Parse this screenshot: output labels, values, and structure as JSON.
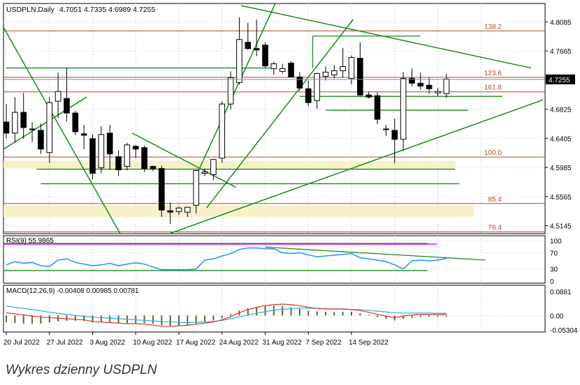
{
  "chart_data": {
    "type": "candlestick",
    "symbol_header": "USDPLN,Daily",
    "ohlc_header": "4.7051 4.7335 4.6989 4.7255",
    "last_price_label": "4.7255",
    "price_axis_ticks": [
      "4.8085",
      "4.7665",
      "4.7255",
      "4.6825",
      "4.6405",
      "4.5985",
      "4.5565",
      "4.5145"
    ],
    "price_range": [
      4.503,
      4.835
    ],
    "date_labels": [
      "20 Jul 2022",
      "27 Jul 2022",
      "3 Aug 2022",
      "10 Aug 2022",
      "17 Aug 2022",
      "24 Aug 2022",
      "31 Aug 2022",
      "7 Sep 2022",
      "14 Sep 2022"
    ],
    "candles": [
      {
        "o": 4.664,
        "h": 4.69,
        "l": 4.64,
        "c": 4.648
      },
      {
        "o": 4.648,
        "h": 4.7,
        "l": 4.635,
        "c": 4.678
      },
      {
        "o": 4.678,
        "h": 4.706,
        "l": 4.64,
        "c": 4.656
      },
      {
        "o": 4.654,
        "h": 4.664,
        "l": 4.635,
        "c": 4.654
      },
      {
        "o": 4.652,
        "h": 4.662,
        "l": 4.618,
        "c": 4.625
      },
      {
        "o": 4.62,
        "h": 4.7,
        "l": 4.605,
        "c": 4.692
      },
      {
        "o": 4.694,
        "h": 4.735,
        "l": 4.67,
        "c": 4.708
      },
      {
        "o": 4.698,
        "h": 4.742,
        "l": 4.665,
        "c": 4.677
      },
      {
        "o": 4.677,
        "h": 4.68,
        "l": 4.645,
        "c": 4.65
      },
      {
        "o": 4.647,
        "h": 4.66,
        "l": 4.625,
        "c": 4.645
      },
      {
        "o": 4.64,
        "h": 4.646,
        "l": 4.582,
        "c": 4.59
      },
      {
        "o": 4.598,
        "h": 4.658,
        "l": 4.59,
        "c": 4.646
      },
      {
        "o": 4.648,
        "h": 4.66,
        "l": 4.595,
        "c": 4.618
      },
      {
        "o": 4.614,
        "h": 4.623,
        "l": 4.586,
        "c": 4.595
      },
      {
        "o": 4.6,
        "h": 4.634,
        "l": 4.594,
        "c": 4.631
      },
      {
        "o": 4.629,
        "h": 4.631,
        "l": 4.612,
        "c": 4.625
      },
      {
        "o": 4.627,
        "h": 4.63,
        "l": 4.592,
        "c": 4.597
      },
      {
        "o": 4.6,
        "h": 4.601,
        "l": 4.593,
        "c": 4.597
      },
      {
        "o": 4.597,
        "h": 4.601,
        "l": 4.527,
        "c": 4.537
      },
      {
        "o": 4.536,
        "h": 4.548,
        "l": 4.517,
        "c": 4.534
      },
      {
        "o": 4.535,
        "h": 4.542,
        "l": 4.53,
        "c": 4.54
      },
      {
        "o": 4.534,
        "h": 4.541,
        "l": 4.527,
        "c": 4.541
      },
      {
        "o": 4.544,
        "h": 4.594,
        "l": 4.532,
        "c": 4.594
      },
      {
        "o": 4.59,
        "h": 4.597,
        "l": 4.586,
        "c": 4.592
      },
      {
        "o": 4.588,
        "h": 4.61,
        "l": 4.58,
        "c": 4.61
      },
      {
        "o": 4.612,
        "h": 4.694,
        "l": 4.605,
        "c": 4.69
      },
      {
        "o": 4.69,
        "h": 4.737,
        "l": 4.682,
        "c": 4.728
      },
      {
        "o": 4.721,
        "h": 4.815,
        "l": 4.718,
        "c": 4.783
      },
      {
        "o": 4.779,
        "h": 4.807,
        "l": 4.768,
        "c": 4.77
      },
      {
        "o": 4.77,
        "h": 4.812,
        "l": 4.759,
        "c": 4.768
      },
      {
        "o": 4.775,
        "h": 4.779,
        "l": 4.742,
        "c": 4.745
      },
      {
        "o": 4.741,
        "h": 4.751,
        "l": 4.732,
        "c": 4.748
      },
      {
        "o": 4.737,
        "h": 4.748,
        "l": 4.734,
        "c": 4.741
      },
      {
        "o": 4.749,
        "h": 4.752,
        "l": 4.729,
        "c": 4.729
      },
      {
        "o": 4.729,
        "h": 4.736,
        "l": 4.709,
        "c": 4.713
      },
      {
        "o": 4.712,
        "h": 4.724,
        "l": 4.687,
        "c": 4.692
      },
      {
        "o": 4.695,
        "h": 4.735,
        "l": 4.683,
        "c": 4.734
      },
      {
        "o": 4.73,
        "h": 4.744,
        "l": 4.724,
        "c": 4.736
      },
      {
        "o": 4.732,
        "h": 4.746,
        "l": 4.727,
        "c": 4.738
      },
      {
        "o": 4.738,
        "h": 4.771,
        "l": 4.728,
        "c": 4.744
      },
      {
        "o": 4.727,
        "h": 4.76,
        "l": 4.718,
        "c": 4.757
      },
      {
        "o": 4.756,
        "h": 4.779,
        "l": 4.7,
        "c": 4.703
      },
      {
        "o": 4.703,
        "h": 4.708,
        "l": 4.698,
        "c": 4.7
      },
      {
        "o": 4.702,
        "h": 4.707,
        "l": 4.661,
        "c": 4.668
      },
      {
        "o": 4.654,
        "h": 4.66,
        "l": 4.644,
        "c": 4.654
      },
      {
        "o": 4.652,
        "h": 4.669,
        "l": 4.605,
        "c": 4.639
      },
      {
        "o": 4.639,
        "h": 4.736,
        "l": 4.622,
        "c": 4.727
      },
      {
        "o": 4.727,
        "h": 4.741,
        "l": 4.716,
        "c": 4.72
      },
      {
        "o": 4.72,
        "h": 4.735,
        "l": 4.711,
        "c": 4.716
      },
      {
        "o": 4.717,
        "h": 4.728,
        "l": 4.705,
        "c": 4.712
      },
      {
        "o": 4.706,
        "h": 4.713,
        "l": 4.701,
        "c": 4.708
      },
      {
        "o": 4.705,
        "h": 4.734,
        "l": 4.699,
        "c": 4.726
      }
    ],
    "fibonacci_levels": [
      {
        "label": "138.2",
        "price": 4.7955
      },
      {
        "label": "123.6",
        "price": 4.7285
      },
      {
        "label": "161.8",
        "price": 4.7075
      },
      {
        "label": "100.0",
        "price": 4.6135
      },
      {
        "label": "85.4",
        "price": 4.5465
      },
      {
        "label": "76.4",
        "price": 4.5055
      }
    ],
    "support_zones": [
      {
        "from": 4.597,
        "to": 4.608
      },
      {
        "from": 4.527,
        "to": 4.544
      }
    ],
    "rsi": {
      "label": "RSI(9) 55.9865",
      "levels": [
        "100",
        "70",
        "30",
        "0"
      ],
      "values": [
        40,
        48,
        44,
        46,
        38,
        36,
        52,
        55,
        46,
        42,
        38,
        40,
        44,
        38,
        42,
        45,
        42,
        35,
        28,
        28,
        28,
        28,
        30,
        52,
        55,
        62,
        68,
        78,
        82,
        82,
        80,
        80,
        70,
        68,
        70,
        65,
        60,
        62,
        64,
        66,
        68,
        58,
        55,
        52,
        48,
        40,
        30,
        50,
        52,
        50,
        52,
        55.99
      ]
    },
    "macd": {
      "label": "MACD(12,26,9) -0.00408 0.00985 0.00781",
      "levels": [
        "0.0881",
        "0.00",
        "-0.05304"
      ],
      "range": [
        -0.053,
        0.0881
      ],
      "histogram": [
        -0.024,
        -0.028,
        -0.03,
        -0.03,
        -0.03,
        -0.026,
        -0.022,
        -0.02,
        -0.02,
        -0.02,
        -0.025,
        -0.025,
        -0.025,
        -0.027,
        -0.028,
        -0.028,
        -0.028,
        -0.03,
        -0.036,
        -0.038,
        -0.036,
        -0.035,
        -0.03,
        -0.022,
        -0.018,
        -0.01,
        0.005,
        0.018,
        0.026,
        0.03,
        0.034,
        0.036,
        0.034,
        0.03,
        0.025,
        0.018,
        0.015,
        0.014,
        0.013,
        0.014,
        0.014,
        0.008,
        0.003,
        -0.006,
        -0.012,
        -0.018,
        -0.012,
        -0.008,
        -0.006,
        -0.005,
        -0.005,
        -0.004
      ],
      "signal": [
        0.035,
        0.03,
        0.026,
        0.022,
        0.017,
        0.012,
        0.008,
        0.004,
        0.0,
        -0.003,
        -0.006,
        -0.008,
        -0.01,
        -0.012,
        -0.014,
        -0.016,
        -0.018,
        -0.02,
        -0.022,
        -0.024,
        -0.025,
        -0.026,
        -0.025,
        -0.024,
        -0.022,
        -0.018,
        -0.012,
        -0.005,
        0.002,
        0.008,
        0.014,
        0.019,
        0.023,
        0.026,
        0.027,
        0.027,
        0.026,
        0.025,
        0.024,
        0.023,
        0.022,
        0.021,
        0.019,
        0.016,
        0.013,
        0.01,
        0.009,
        0.009,
        0.009,
        0.009,
        0.008,
        0.008
      ],
      "macd_line": [
        0.01,
        0.006,
        0.002,
        -0.002,
        -0.006,
        -0.008,
        -0.01,
        -0.012,
        -0.014,
        -0.016,
        -0.022,
        -0.024,
        -0.026,
        -0.028,
        -0.03,
        -0.03,
        -0.032,
        -0.035,
        -0.04,
        -0.04,
        -0.038,
        -0.036,
        -0.032,
        -0.028,
        -0.024,
        -0.016,
        -0.004,
        0.01,
        0.022,
        0.03,
        0.036,
        0.04,
        0.042,
        0.04,
        0.036,
        0.03,
        0.026,
        0.024,
        0.024,
        0.024,
        0.022,
        0.018,
        0.012,
        0.004,
        -0.002,
        -0.008,
        -0.002,
        0.002,
        0.004,
        0.004,
        0.004,
        0.004
      ]
    }
  },
  "caption": "Wykres dzienny USDPLN"
}
